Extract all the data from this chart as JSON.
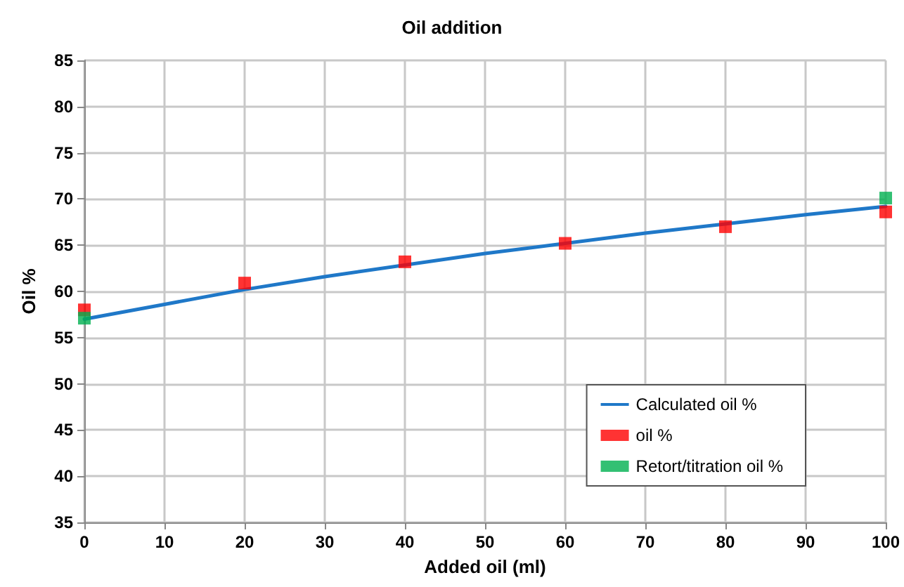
{
  "chart_data": {
    "type": "line",
    "title": "Oil addition",
    "xlabel": "Added oil (ml)",
    "ylabel": "Oil %",
    "xlim": [
      0,
      100
    ],
    "xticks": [
      0,
      10,
      20,
      30,
      40,
      50,
      60,
      70,
      80,
      90,
      100
    ],
    "ylim": [
      35,
      85
    ],
    "yticks": [
      35,
      40,
      45,
      50,
      55,
      60,
      65,
      70,
      75,
      80,
      85
    ],
    "grid": true,
    "legend": "bottom right",
    "line_style": "solid",
    "series": [
      {
        "name": "Calculated oil %",
        "marker": "none",
        "color": "#1f78c8",
        "x": [
          0,
          10,
          20,
          30,
          50,
          70,
          90,
          100
        ],
        "values": [
          57.0,
          58.6,
          60.2,
          61.6,
          64.1,
          66.3,
          68.3,
          69.2
        ]
      },
      {
        "name": "oil %",
        "type": "scatter",
        "marker": "square",
        "color": "#ff0000",
        "x": [
          0,
          20,
          40,
          60,
          80,
          100
        ],
        "values": [
          58.0,
          60.9,
          63.2,
          65.2,
          67.0,
          68.6
        ]
      },
      {
        "name": "Retort/titration oil %",
        "type": "scatter",
        "marker": "square",
        "color": "#00b050",
        "x": [
          0,
          100
        ],
        "values": [
          57.1,
          70.1
        ]
      }
    ]
  }
}
